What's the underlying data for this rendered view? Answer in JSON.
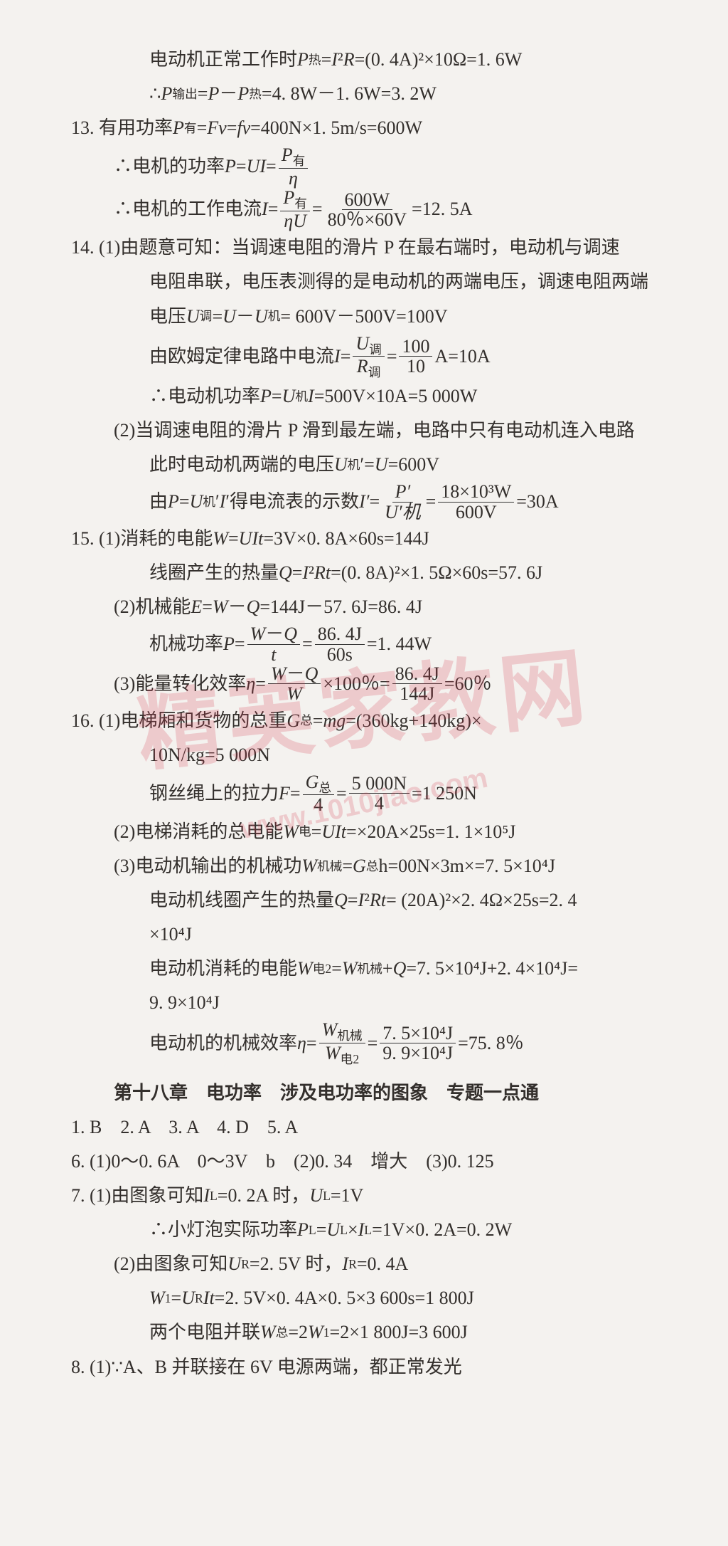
{
  "watermark_main": "精英家教网",
  "watermark_url": "www.1010jiao.com",
  "watermark_color": "rgba(214,60,80,0.22)",
  "text_color": "#332f2c",
  "bg_color": "#f4f2ef",
  "lines": {
    "l1a": "电动机正常工作时 ",
    "l1b": "=(0. 4A)²×10Ω=1. 6W",
    "l2a": "∴",
    "l2b": "=4. 8W－1. 6W=3. 2W",
    "l3a": "13. 有用功率 ",
    "l3b": "=400N×1. 5m/s=600W",
    "l4a": "∴电机的功率 ",
    "l5a": "∴电机的工作电流 ",
    "l5num": "600W",
    "l5den": "80％×60V",
    "l5b": "=12. 5A",
    "l6": "14. (1)由题意可知：当调速电阻的滑片 P 在最右端时，电动机与调速",
    "l7": "电阻串联，电压表测得的是电动机的两端电压，调速电阻两端",
    "l8a": "电压 ",
    "l8b": " = 600V－500V=100V",
    "l9a": "由欧姆定律电路中电流 ",
    "l9num": "100",
    "l9den": "10",
    "l9b": "A=10A",
    "l10a": "∴电动机功率 ",
    "l10b": "=500V×10A=5 000W",
    "l11": "(2)当调速电阻的滑片 P 滑到最左端，电路中只有电动机连入电路",
    "l12a": "此时电动机两端的电压 ",
    "l12b": "=600V",
    "l13a": "由 ",
    "l13b": " 得电流表的示数 ",
    "l13num": "18×10³W",
    "l13den": "600V",
    "l13c": "=30A",
    "l14a": "15. (1)消耗的电能 ",
    "l14b": "=3V×0. 8A×60s=144J",
    "l15a": "线圈产生的热量 ",
    "l15b": "=(0. 8A)²×1. 5Ω×60s=57. 6J",
    "l16a": "(2)机械能 ",
    "l16b": "=144J－57. 6J=86. 4J",
    "l17a": "机械功率 ",
    "l17num": "86. 4J",
    "l17den": "60s",
    "l17b": "=1. 44W",
    "l18a": "(3)能量转化效率 ",
    "l18b": "×100％=",
    "l18num2": "86. 4J",
    "l18c": "=60％",
    "l19a": "16. (1)电梯厢和货物的总重 ",
    "l19b": "=(360kg+140kg)×",
    "l20": "10N/kg=5 000N",
    "l21a": "钢丝绳上的拉力 ",
    "l21num": "5 000N",
    "l21den": "4",
    "l21b": "=1 250N",
    "l22a": "(2)电梯消耗的总电能 ",
    "l22b": "×20A×25s=1. 1×10⁵J",
    "l23a": "(3)电动机输出的机械功 ",
    "l23b": "00N×3m×=7. 5×10⁴J",
    "l24a": "电动机线圈产生的热量 ",
    "l24b": "= (20A)²×2. 4Ω×25s=2. 4",
    "l24c": "×10⁴J",
    "l25a": "电动机消耗的电能 ",
    "l25b": "=7. 5×10⁴J+2. 4×10⁴J=",
    "l25c": "9. 9×10⁴J",
    "l26a": "电动机的机械效率 ",
    "l26num": "7. 5×10⁴J",
    "l26den": "9. 9×10⁴J",
    "l26b": "=75. 8％",
    "heading": "第十八章　电功率　涉及电功率的图象　专题一点通",
    "l27": "1. B　2. A　3. A　4. D　5. A",
    "l28": "6. (1)0～0. 6A　0～3V　b　(2)0. 34　增大　(3)0. 125",
    "l29a": "7. (1)由图象可知 ",
    "l29b": "=0. 2A 时，",
    "l29c": "=1V",
    "l30a": "∴小灯泡实际功率 ",
    "l30b": "=1V×0. 2A=0. 2W",
    "l31a": "(2)由图象可知 ",
    "l31b": "=2. 5V 时，",
    "l31c": "=0. 4A",
    "l32a": "",
    "l32b": "=2. 5V×0. 4A×0. 5×3 600s=1 800J",
    "l33a": "两个电阻并联 ",
    "l33b": "=2×1 800J=3 600J",
    "l34": "8. (1)∵A、B 并联接在 6V 电源两端，都正常发光"
  },
  "vars": {
    "P": "P",
    "P_re": "P",
    "sub_re": "热",
    "I": "I",
    "R": "R",
    "P_chu": "P",
    "sub_chu": "输出",
    "P_you": "P",
    "sub_you": "有",
    "F": "F",
    "v": "v",
    "f": "f",
    "U": "U",
    "eta": "η",
    "U_tiao": "U",
    "sub_tiao": "调",
    "U_ji": "U",
    "sub_ji": "机",
    "R_tiao": "R",
    "P_prime": "P′",
    "U_jiprime": "U′机",
    "I_prime": "I′",
    "W": "W",
    "Q": "Q",
    "E": "E",
    "t": "t",
    "G": "G",
    "sub_zong": "总",
    "W_jixie": "W",
    "sub_jixie": "机械",
    "W_dian2": "W",
    "sub_dian2": "电2",
    "I_L": "I",
    "sub_L": "L",
    "U_L": "U",
    "P_L": "P",
    "U_R": "U",
    "sub_R": "R",
    "I_R": "I",
    "W1": "W",
    "sub_1": "1",
    "W_zong": "W"
  }
}
